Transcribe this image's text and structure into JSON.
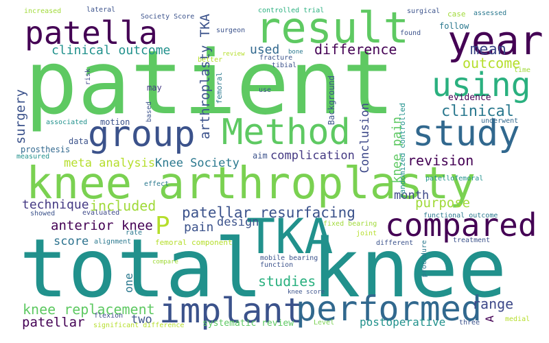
{
  "words": [
    {
      "id": "patient",
      "text": "patient",
      "color": "#5ec962"
    },
    {
      "id": "total-knee",
      "text": "total knee",
      "color": "#21918c"
    },
    {
      "id": "knee-arthroplasty",
      "text": "knee arthroplasty",
      "color": "#7ad151"
    },
    {
      "id": "result",
      "text": "result",
      "color": "#5ec962"
    },
    {
      "id": "patella",
      "text": "patella",
      "color": "#440154"
    },
    {
      "id": "year",
      "text": "year",
      "color": "#440154"
    },
    {
      "id": "group",
      "text": "group",
      "color": "#3b528b"
    },
    {
      "id": "method",
      "text": "Method",
      "color": "#5ec962"
    },
    {
      "id": "study",
      "text": "study",
      "color": "#31688e"
    },
    {
      "id": "using",
      "text": "using",
      "color": "#2ab07f"
    },
    {
      "id": "tka",
      "text": "TKA",
      "color": "#21918c"
    },
    {
      "id": "compared",
      "text": "compared",
      "color": "#440154"
    },
    {
      "id": "implant",
      "text": "implant",
      "color": "#3b528b"
    },
    {
      "id": "performed",
      "text": "performed",
      "color": "#31688e"
    },
    {
      "id": "p",
      "text": "P",
      "color": "#b5de2b"
    },
    {
      "id": "difference",
      "text": "difference",
      "color": "#440154"
    },
    {
      "id": "mean",
      "text": "mean",
      "color": "#3e4989"
    },
    {
      "id": "clinical-outcome",
      "text": "clinical outcome",
      "color": "#21918c"
    },
    {
      "id": "used",
      "text": "used",
      "color": "#31688e"
    },
    {
      "id": "outcome",
      "text": "outcome",
      "color": "#b5de2b"
    },
    {
      "id": "clinical",
      "text": "clinical",
      "color": "#2a788e"
    },
    {
      "id": "knee-pain",
      "text": "knee pain",
      "color": "#5ec962"
    },
    {
      "id": "revision",
      "text": "revision",
      "color": "#440154"
    },
    {
      "id": "complication",
      "text": "complication",
      "color": "#443983"
    },
    {
      "id": "meta-analysis",
      "text": "meta analysis",
      "color": "#b5de2b"
    },
    {
      "id": "knee-society",
      "text": "Knee Society",
      "color": "#2a788e"
    },
    {
      "id": "patellar-resurfacing",
      "text": "patellar resurfacing",
      "color": "#3b528b"
    },
    {
      "id": "included",
      "text": "included",
      "color": "#a0da39"
    },
    {
      "id": "technique",
      "text": "technique",
      "color": "#443983"
    },
    {
      "id": "purpose",
      "text": "purpose",
      "color": "#a0da39"
    },
    {
      "id": "anterior-knee",
      "text": "anterior knee",
      "color": "#440154"
    },
    {
      "id": "pain",
      "text": "pain",
      "color": "#3b528b"
    },
    {
      "id": "design",
      "text": "design",
      "color": "#3b528b"
    },
    {
      "id": "month",
      "text": "month",
      "color": "#3e4989"
    },
    {
      "id": "score",
      "text": "score",
      "color": "#2c728e"
    },
    {
      "id": "studies",
      "text": "studies",
      "color": "#2ab07f"
    },
    {
      "id": "knee-replacement",
      "text": "knee replacement",
      "color": "#5ec962"
    },
    {
      "id": "range",
      "text": "range",
      "color": "#3e4989"
    },
    {
      "id": "patellar",
      "text": "patellar",
      "color": "#440154"
    },
    {
      "id": "two",
      "text": "two",
      "color": "#3b528b"
    },
    {
      "id": "postoperative",
      "text": "postoperative",
      "color": "#21918c"
    },
    {
      "id": "systematic-review",
      "text": "systematic review",
      "color": "#5ec962"
    },
    {
      "id": "one",
      "text": "one",
      "color": "#2a788e"
    },
    {
      "id": "a",
      "text": "A",
      "color": "#440154"
    },
    {
      "id": "arthroplasty-tka",
      "text": "arthroplasty TKA",
      "color": "#3b528b"
    },
    {
      "id": "surgery",
      "text": "surgery",
      "color": "#3b528b"
    },
    {
      "id": "conclusion",
      "text": "Conclusion",
      "color": "#3e4989"
    },
    {
      "id": "randomized-controlled",
      "text": "randomized controlled",
      "color": "#21918c"
    },
    {
      "id": "evidence",
      "text": "evidence",
      "color": "#440154"
    },
    {
      "id": "underwent",
      "text": "underwent",
      "color": "#31688e"
    },
    {
      "id": "time",
      "text": "time",
      "color": "#a0da39"
    },
    {
      "id": "may",
      "text": "may",
      "color": "#443983"
    },
    {
      "id": "motion",
      "text": "motion",
      "color": "#3b528b"
    },
    {
      "id": "associated",
      "text": "associated",
      "color": "#21918c"
    },
    {
      "id": "data",
      "text": "data",
      "color": "#3b528b"
    },
    {
      "id": "prosthesis",
      "text": "prosthesis",
      "color": "#31688e"
    },
    {
      "id": "measured",
      "text": "measured",
      "color": "#21918c"
    },
    {
      "id": "aim",
      "text": "aim",
      "color": "#3b528b"
    },
    {
      "id": "effect",
      "text": "effect",
      "color": "#2a788e"
    },
    {
      "id": "evaluated",
      "text": "evaluated",
      "color": "#3e4989"
    },
    {
      "id": "showed",
      "text": "showed",
      "color": "#3b528b"
    },
    {
      "id": "rate",
      "text": "rate",
      "color": "#2a788e"
    },
    {
      "id": "alignment",
      "text": "alignment",
      "color": "#2a788e"
    },
    {
      "id": "femoral-component",
      "text": "femoral component",
      "color": "#b5de2b"
    },
    {
      "id": "compare",
      "text": "compare",
      "color": "#a0da39"
    },
    {
      "id": "mobile-bearing",
      "text": "mobile bearing",
      "color": "#3b528b"
    },
    {
      "id": "function",
      "text": "function",
      "color": "#3b528b"
    },
    {
      "id": "flexion",
      "text": "flexion",
      "color": "#3e4989"
    },
    {
      "id": "significant-difference",
      "text": "significant difference",
      "color": "#b5de2b"
    },
    {
      "id": "level",
      "text": "Level",
      "color": "#7ad151"
    },
    {
      "id": "three",
      "text": "three",
      "color": "#3b528b"
    },
    {
      "id": "medial",
      "text": "medial",
      "color": "#b5de2b"
    },
    {
      "id": "knee-score",
      "text": "knee score",
      "color": "#3b528b"
    },
    {
      "id": "procedure",
      "text": "procedure",
      "color": "#2a788e"
    },
    {
      "id": "different",
      "text": "different",
      "color": "#3b528b"
    },
    {
      "id": "treatment",
      "text": "treatment",
      "color": "#3b528b"
    },
    {
      "id": "joint",
      "text": "joint",
      "color": "#b5de2b"
    },
    {
      "id": "fixed-bearing",
      "text": "fixed bearing",
      "color": "#a0da39"
    },
    {
      "id": "functional-outcome",
      "text": "functional outcome",
      "color": "#2a788e"
    },
    {
      "id": "patellofemoral",
      "text": "patellofemoral",
      "color": "#21918c"
    },
    {
      "id": "use",
      "text": "use",
      "color": "#3b528b"
    },
    {
      "id": "based",
      "text": "based",
      "color": "#3b528b"
    },
    {
      "id": "risk",
      "text": "risk",
      "color": "#3e4989"
    },
    {
      "id": "increased",
      "text": "increased",
      "color": "#a0da39"
    },
    {
      "id": "lateral",
      "text": "lateral",
      "color": "#3b528b"
    },
    {
      "id": "society-score",
      "text": "Society Score",
      "color": "#3b528b"
    },
    {
      "id": "controlled-trial",
      "text": "controlled trial",
      "color": "#2ab07f"
    },
    {
      "id": "surgical",
      "text": "surgical",
      "color": "#3b528b"
    },
    {
      "id": "case",
      "text": "case",
      "color": "#a0da39"
    },
    {
      "id": "assessed",
      "text": "assessed",
      "color": "#2a788e"
    },
    {
      "id": "surgeon",
      "text": "surgeon",
      "color": "#3b528b"
    },
    {
      "id": "found",
      "text": "found",
      "color": "#3b528b"
    },
    {
      "id": "follow",
      "text": "follow",
      "color": "#2a788e"
    },
    {
      "id": "better",
      "text": "better",
      "color": "#b5de2b"
    },
    {
      "id": "review",
      "text": "review",
      "color": "#b5de2b"
    },
    {
      "id": "bone",
      "text": "bone",
      "color": "#2a788e"
    },
    {
      "id": "fracture",
      "text": "fracture",
      "color": "#3b528b"
    },
    {
      "id": "tibial",
      "text": "tibial",
      "color": "#3b528b"
    },
    {
      "id": "femoral",
      "text": "femoral",
      "color": "#2a788e"
    },
    {
      "id": "background",
      "text": "Background",
      "color": "#3b528b"
    }
  ]
}
